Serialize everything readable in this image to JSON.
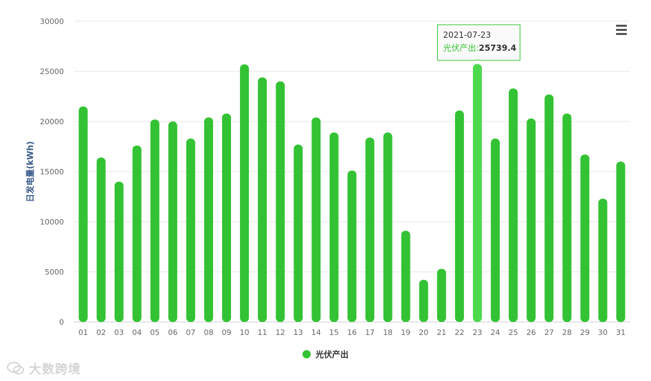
{
  "chart_data": {
    "type": "bar",
    "ylabel": "日发电量(kWh)",
    "ylim": [
      0,
      30000
    ],
    "yticks": [
      0,
      5000,
      10000,
      15000,
      20000,
      25000,
      30000
    ],
    "categories": [
      "01",
      "02",
      "03",
      "04",
      "05",
      "06",
      "07",
      "08",
      "09",
      "10",
      "11",
      "12",
      "13",
      "14",
      "15",
      "16",
      "17",
      "18",
      "19",
      "20",
      "21",
      "22",
      "23",
      "24",
      "25",
      "26",
      "27",
      "28",
      "29",
      "30",
      "31"
    ],
    "series": [
      {
        "name": "光伏产出",
        "color": "#33c233",
        "values": [
          21500,
          16400,
          14000,
          17600,
          20200,
          20000,
          18300,
          20400,
          20800,
          25700,
          24400,
          24000,
          17700,
          20400,
          18900,
          15100,
          18400,
          18900,
          9100,
          4200,
          5300,
          21100,
          25739.4,
          18300,
          23300,
          20300,
          22700,
          20800,
          16700,
          12300,
          16000
        ]
      }
    ],
    "legend": {
      "position": "bottom-center"
    },
    "grid": true,
    "highlight_color": "#4cd94c",
    "tooltip": {
      "date": "2021-07-23",
      "series_name": "光伏产出",
      "separator": ":",
      "value": "25739.4",
      "category_index": 22
    }
  },
  "watermark": {
    "text": "大数跨境",
    "icon": "wechat-like-logo-icon"
  },
  "menu": {
    "icon": "hamburger-menu-icon"
  }
}
